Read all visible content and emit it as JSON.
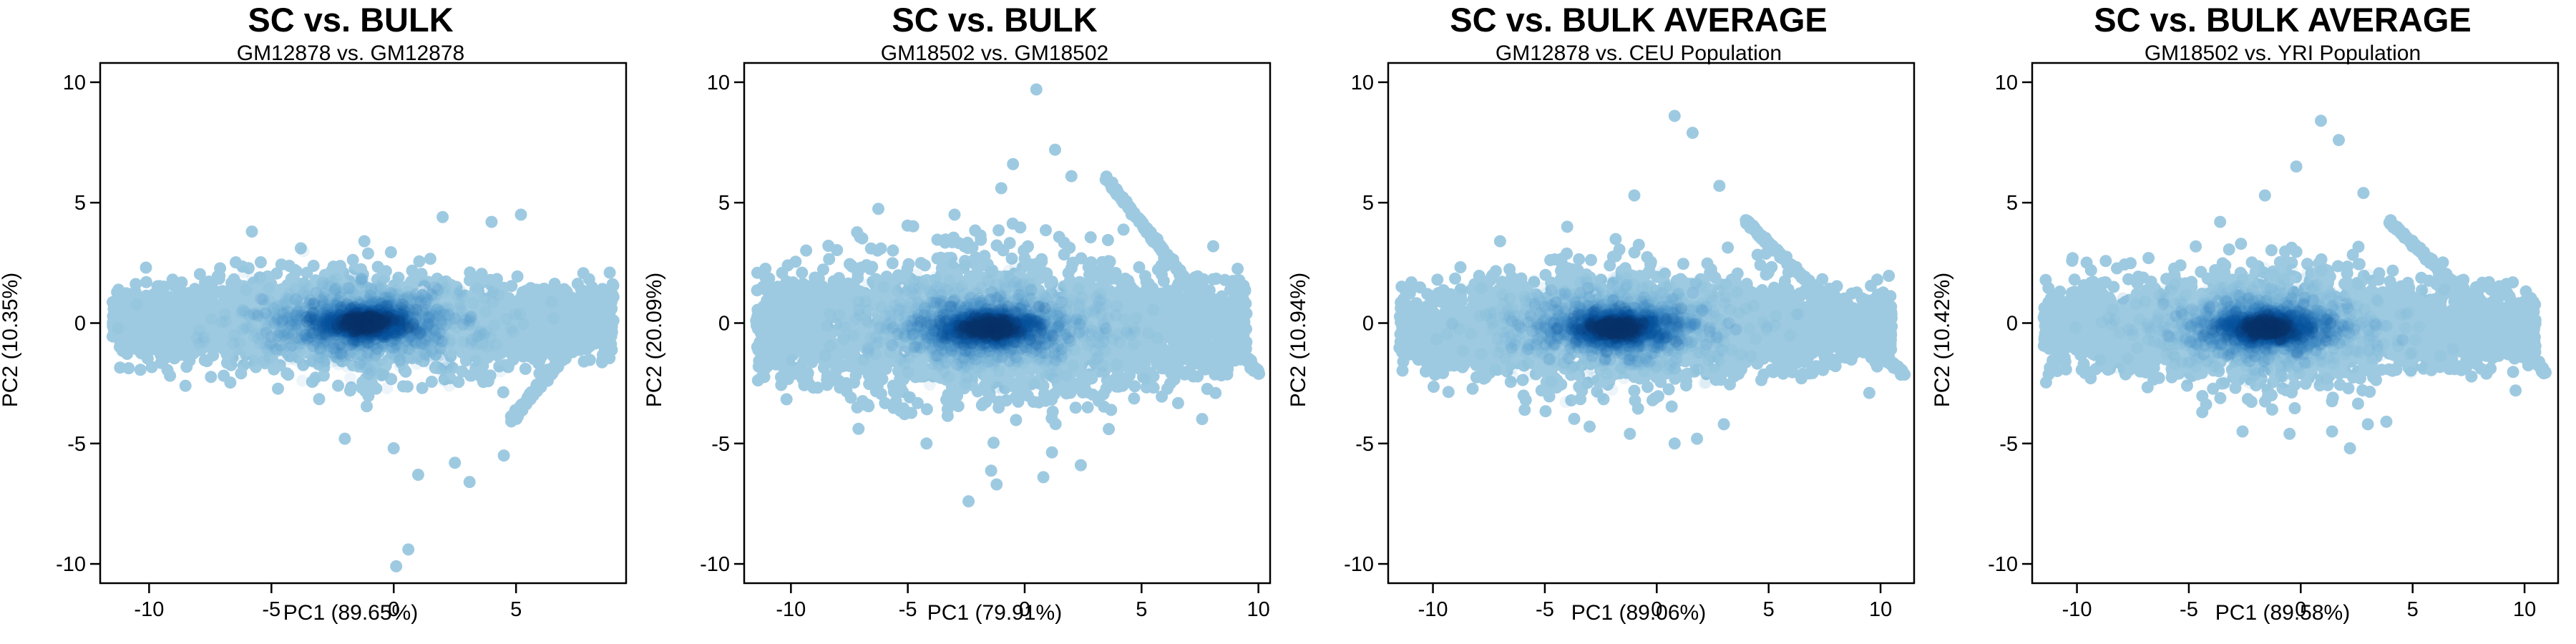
{
  "chart_data": [
    {
      "type": "scatter",
      "title": "SC vs. BULK",
      "subtitle": "GM12878 vs. GM12878",
      "xlabel": "PC1 (89.65%)",
      "ylabel": "PC2 (10.35%)",
      "xlim": [
        -12,
        9.5
      ],
      "ylim": [
        -10.8,
        10.8
      ],
      "xticks": [
        -10,
        -5,
        0,
        5
      ],
      "yticks": [
        -10,
        -5,
        0,
        5,
        10
      ],
      "grid": false,
      "density_center": [
        -1.2,
        0
      ],
      "cloud": {
        "x_range": [
          -11.5,
          9
        ],
        "spread_y": 1.1
      },
      "diagonal_band": [
        [
          4.8,
          -4.0
        ],
        [
          9,
          1.1
        ]
      ],
      "outliers": [
        [
          -10.1,
          -1.0
        ],
        [
          -11.0,
          -0.8
        ],
        [
          -5.8,
          3.8
        ],
        [
          -1.2,
          3.4
        ],
        [
          2.0,
          4.4
        ],
        [
          4.0,
          4.2
        ],
        [
          5.2,
          4.5
        ],
        [
          -2.0,
          -4.8
        ],
        [
          0.0,
          -5.2
        ],
        [
          1.0,
          -6.3
        ],
        [
          2.5,
          -5.8
        ],
        [
          3.1,
          -6.6
        ],
        [
          4.5,
          -5.5
        ],
        [
          0.6,
          -9.4
        ],
        [
          0.1,
          -10.1
        ]
      ]
    },
    {
      "type": "scatter",
      "title": "SC vs. BULK",
      "subtitle": "GM18502 vs. GM18502",
      "xlabel": "PC1 (79.91%)",
      "ylabel": "PC2 (20.09%)",
      "xlim": [
        -12,
        10.5
      ],
      "ylim": [
        -10.8,
        10.8
      ],
      "xticks": [
        -10,
        -5,
        0,
        5,
        10
      ],
      "yticks": [
        -10,
        -5,
        0,
        5,
        10
      ],
      "grid": false,
      "density_center": [
        -1.5,
        -0.2
      ],
      "cloud": {
        "x_range": [
          -11.5,
          9.5
        ],
        "spread_y": 1.6
      },
      "diagonal_band": [
        [
          3.5,
          6.0
        ],
        [
          10,
          -2.1
        ]
      ],
      "outliers": [
        [
          -11.2,
          1.5
        ],
        [
          -10.5,
          0.7
        ],
        [
          -7.0,
          2.3
        ],
        [
          -3.0,
          4.5
        ],
        [
          -1.0,
          5.6
        ],
        [
          0.5,
          9.7
        ],
        [
          1.3,
          7.2
        ],
        [
          -0.5,
          6.6
        ],
        [
          2.0,
          6.1
        ],
        [
          -4.2,
          -5.0
        ],
        [
          -2.4,
          -7.4
        ],
        [
          -1.2,
          -6.7
        ],
        [
          0.8,
          -6.4
        ],
        [
          2.4,
          -5.9
        ],
        [
          3.6,
          -4.4
        ],
        [
          -6.8,
          -3.4
        ]
      ]
    },
    {
      "type": "scatter",
      "title": "SC vs. BULK AVERAGE",
      "subtitle": "GM12878 vs. CEU Population",
      "xlabel": "PC1 (89.06%)",
      "ylabel": "PC2 (10.94%)",
      "xlim": [
        -12,
        11.5
      ],
      "ylim": [
        -10.8,
        10.8
      ],
      "xticks": [
        -10,
        -5,
        0,
        5,
        10
      ],
      "yticks": [
        -10,
        -5,
        0,
        5,
        10
      ],
      "grid": false,
      "density_center": [
        -1.8,
        -0.2
      ],
      "cloud": {
        "x_range": [
          -11.5,
          10.5
        ],
        "spread_y": 1.2
      },
      "diagonal_band": [
        [
          4.0,
          4.2
        ],
        [
          11,
          -2.1
        ]
      ],
      "outliers": [
        [
          -11.3,
          0.6
        ],
        [
          -9.8,
          1.8
        ],
        [
          -7.0,
          3.4
        ],
        [
          -4.0,
          4.0
        ],
        [
          -1.0,
          5.3
        ],
        [
          0.8,
          8.6
        ],
        [
          1.6,
          7.9
        ],
        [
          2.8,
          5.7
        ],
        [
          -5.9,
          -3.6
        ],
        [
          -3.0,
          -4.3
        ],
        [
          -1.2,
          -4.6
        ],
        [
          0.8,
          -5.0
        ],
        [
          1.8,
          -4.8
        ],
        [
          3.0,
          -4.2
        ],
        [
          9.5,
          -2.9
        ]
      ]
    },
    {
      "type": "scatter",
      "title": "SC vs. BULK AVERAGE",
      "subtitle": "GM18502 vs. YRI Population",
      "xlabel": "PC1 (89.58%)",
      "ylabel": "PC2 (10.42%)",
      "xlim": [
        -12,
        11.5
      ],
      "ylim": [
        -10.8,
        10.8
      ],
      "xticks": [
        -10,
        -5,
        0,
        5,
        10
      ],
      "yticks": [
        -10,
        -5,
        0,
        5,
        10
      ],
      "grid": false,
      "density_center": [
        -1.5,
        -0.2
      ],
      "cloud": {
        "x_range": [
          -11.5,
          10.5
        ],
        "spread_y": 1.2
      },
      "diagonal_band": [
        [
          4.0,
          4.2
        ],
        [
          11,
          -2.1
        ]
      ],
      "outliers": [
        [
          -11.2,
          0.6
        ],
        [
          -9.6,
          1.4
        ],
        [
          -6.8,
          2.7
        ],
        [
          -3.6,
          4.2
        ],
        [
          -1.6,
          5.3
        ],
        [
          0.9,
          8.4
        ],
        [
          1.7,
          7.6
        ],
        [
          -0.2,
          6.5
        ],
        [
          2.8,
          5.4
        ],
        [
          -4.4,
          -3.7
        ],
        [
          -2.6,
          -4.5
        ],
        [
          -0.5,
          -4.6
        ],
        [
          1.4,
          -4.5
        ],
        [
          2.2,
          -5.2
        ],
        [
          3.0,
          -4.2
        ],
        [
          9.6,
          -2.8
        ]
      ]
    }
  ]
}
